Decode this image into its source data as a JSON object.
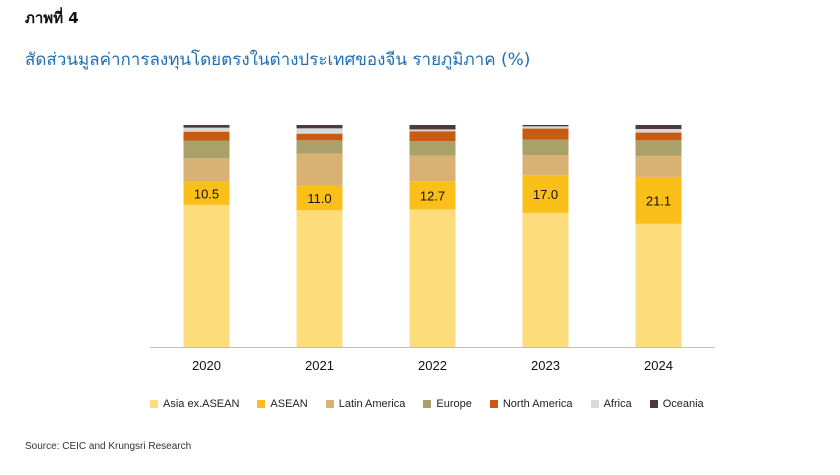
{
  "figure_label": "ภาพที่ 4",
  "source": "Source: CEIC and Krungsri Research",
  "chart_data": {
    "type": "bar",
    "stacked": true,
    "percent_stacked": true,
    "title": "สัดส่วนมูลค่าการลงทุนโดยตรงในต่างประเทศของจีน รายภูมิภาค (%)",
    "xlabel": "",
    "ylabel": "",
    "ylim": [
      0,
      100
    ],
    "grid": false,
    "legend_position": "bottom",
    "categories": [
      "2020",
      "2021",
      "2022",
      "2023",
      "2024"
    ],
    "series": [
      {
        "name": "Asia ex.ASEAN",
        "color": "#fedb7b",
        "values": [
          64.0,
          61.6,
          62.0,
          60.4,
          55.5
        ],
        "show_labels": false
      },
      {
        "name": "ASEAN",
        "color": "#fbbf1a",
        "values": [
          10.5,
          11.0,
          12.7,
          17.0,
          21.1
        ],
        "show_labels": true
      },
      {
        "name": "Latin America",
        "color": "#d8b173",
        "values": [
          10.5,
          14.5,
          11.5,
          9.0,
          9.5
        ],
        "show_labels": false
      },
      {
        "name": "Europe",
        "color": "#aaa06a",
        "values": [
          8.0,
          6.0,
          6.5,
          7.0,
          7.0
        ],
        "show_labels": false
      },
      {
        "name": "North America",
        "color": "#c75b12",
        "values": [
          4.0,
          3.0,
          4.5,
          5.0,
          3.5
        ],
        "show_labels": false
      },
      {
        "name": "Africa",
        "color": "#d9d9d9",
        "values": [
          1.8,
          2.4,
          0.8,
          1.0,
          1.6
        ],
        "show_labels": false
      },
      {
        "name": "Oceania",
        "color": "#4d3b3b",
        "values": [
          1.2,
          1.5,
          2.0,
          0.6,
          1.8
        ],
        "show_labels": false
      }
    ]
  }
}
